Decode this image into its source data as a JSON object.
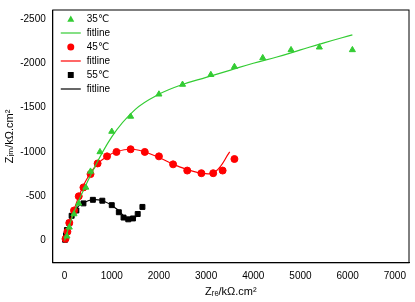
{
  "chart_data": {
    "type": "scatter",
    "x_label": "Zᵣₑ/kΩ.cm²",
    "y_label": "Zᵢₘ/kΩ.cm²",
    "xlim": [
      -250,
      7300
    ],
    "xticks": [
      0,
      1000,
      2000,
      3000,
      4000,
      5000,
      6000,
      7000
    ],
    "ylim": [
      250,
      -2600
    ],
    "yticks": [
      -2500,
      -2000,
      -1500,
      -1000,
      -500,
      0
    ],
    "grid": false,
    "legend": "upper left",
    "series": [
      {
        "name": "35℃",
        "type": "scatter",
        "marker": "triangle",
        "color": "#33cc33",
        "x": [
          50,
          100,
          200,
          300,
          450,
          550,
          750,
          1000,
          1400,
          2000,
          2500,
          3100,
          3600,
          4200,
          4800,
          5400,
          6100
        ],
        "values": [
          -50,
          -150,
          -300,
          -420,
          -600,
          -780,
          -1000,
          -1230,
          -1400,
          -1650,
          -1760,
          -1870,
          -1960,
          -2060,
          -2150,
          -2180,
          -2150
        ]
      },
      {
        "name": "fitline",
        "type": "line",
        "line_style": "solid",
        "color": "#33cc33",
        "x": [
          0,
          200,
          500,
          1000,
          1500,
          2000,
          2500,
          3000,
          3500,
          4000,
          4500,
          5000,
          5500,
          6100
        ],
        "values": [
          0,
          -320,
          -680,
          -1170,
          -1480,
          -1650,
          -1760,
          -1840,
          -1920,
          -2000,
          -2070,
          -2150,
          -2230,
          -2320
        ]
      },
      {
        "name": "45℃",
        "type": "scatter",
        "marker": "circle",
        "color": "#ff0000",
        "x": [
          20,
          60,
          100,
          200,
          300,
          400,
          550,
          700,
          900,
          1100,
          1400,
          1700,
          2000,
          2300,
          2600,
          2900,
          3150,
          3350,
          3600
        ],
        "values": [
          -20,
          -100,
          -200,
          -340,
          -500,
          -600,
          -750,
          -870,
          -950,
          -1000,
          -1030,
          -1000,
          -950,
          -860,
          -790,
          -760,
          -760,
          -790,
          -920
        ]
      },
      {
        "name": "fitline",
        "type": "line",
        "line_style": "solid",
        "color": "#ff0000",
        "x": [
          0,
          200,
          500,
          900,
          1400,
          1900,
          2400,
          2900,
          3200,
          3500
        ],
        "values": [
          0,
          -350,
          -720,
          -950,
          -1030,
          -960,
          -840,
          -760,
          -780,
          -1000
        ]
      },
      {
        "name": "55℃",
        "type": "scatter",
        "marker": "square",
        "color": "#000000",
        "x": [
          10,
          30,
          50,
          100,
          150,
          250,
          400,
          600,
          800,
          1000,
          1150,
          1250,
          1350,
          1450,
          1550,
          1650
        ],
        "values": [
          -10,
          -60,
          -120,
          -200,
          -280,
          -340,
          -420,
          -460,
          -450,
          -400,
          -320,
          -260,
          -240,
          -250,
          -300,
          -380
        ]
      },
      {
        "name": "fitline",
        "type": "line",
        "line_style": "solid",
        "color": "#000000",
        "x": [
          0,
          200,
          500,
          800,
          1100,
          1300,
          1450,
          1600
        ],
        "values": [
          0,
          -330,
          -450,
          -450,
          -360,
          -260,
          -240,
          -330
        ]
      }
    ]
  }
}
